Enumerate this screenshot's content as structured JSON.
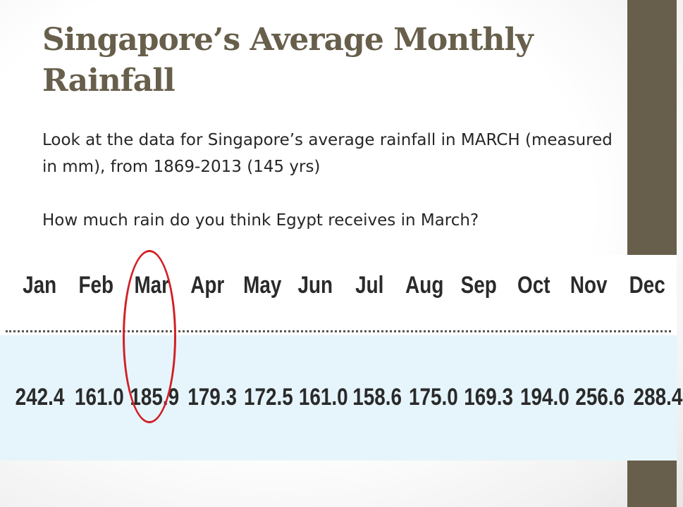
{
  "slide": {
    "title": "Singapore’s Average Monthly Rainfall",
    "paragraph_1": "Look at the data for Singapore’s average rainfall in MARCH (measured in mm), from 1869-2013 (145 yrs)",
    "paragraph_2": "How much rain do you think Egypt receives in March?",
    "accent_color": "#675f4b",
    "highlight_color": "#d21f26",
    "table_band_color": "#e6f5fb"
  },
  "chart_data": {
    "type": "table",
    "categories": [
      "Jan",
      "Feb",
      "Mar",
      "Apr",
      "May",
      "Jun",
      "Jul",
      "Aug",
      "Sep",
      "Oct",
      "Nov",
      "Dec"
    ],
    "values": [
      "242.4",
      "161.0",
      "185.9",
      "179.3",
      "172.5",
      "161.0",
      "158.6",
      "175.0",
      "169.3",
      "194.0",
      "256.6",
      "288.4"
    ],
    "highlighted_category": "Mar"
  }
}
